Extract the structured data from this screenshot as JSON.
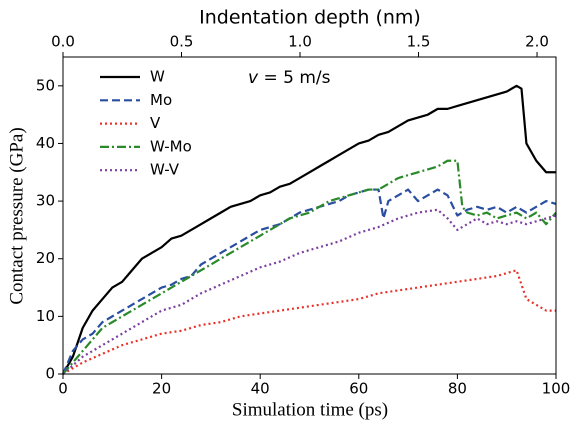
{
  "chart_data": {
    "type": "line",
    "xlabel": "Simulation time (ps)",
    "ylabel": "Contact pressure (GPa)",
    "x2label": "Indentation depth (nm)",
    "annotation": {
      "variable": "v",
      "text": "= 5 m/s"
    },
    "xlim": [
      0,
      100
    ],
    "xticks": [
      0,
      20,
      40,
      60,
      80,
      100
    ],
    "ylim": [
      0,
      55
    ],
    "yticks": [
      0,
      10,
      20,
      30,
      40,
      50
    ],
    "x2lim": [
      0,
      2.08
    ],
    "x2ticks": [
      {
        "value": 0,
        "label": "0.0"
      },
      {
        "value": 0.5,
        "label": "0.5"
      },
      {
        "value": 1,
        "label": "1.0"
      },
      {
        "value": 1.5,
        "label": "1.5"
      },
      {
        "value": 2,
        "label": "2.0"
      }
    ],
    "legend": "upper left",
    "series": [
      {
        "name": "W",
        "color": "#000000",
        "linestyle": "solid",
        "x": [
          0,
          2,
          4,
          6,
          8,
          10,
          12,
          14,
          16,
          18,
          20,
          22,
          24,
          26,
          28,
          30,
          32,
          34,
          36,
          38,
          40,
          42,
          44,
          46,
          48,
          50,
          52,
          54,
          56,
          58,
          60,
          62,
          64,
          66,
          68,
          70,
          72,
          74,
          76,
          78,
          80,
          82,
          84,
          86,
          88,
          90,
          92,
          93,
          94,
          96,
          98,
          100
        ],
        "values": [
          0,
          3,
          8,
          11,
          13,
          15,
          16,
          18,
          20,
          21,
          22,
          23.5,
          24,
          25,
          26,
          27,
          28,
          29,
          29.5,
          30,
          31,
          31.5,
          32.5,
          33,
          34,
          35,
          36,
          37,
          38,
          39,
          40,
          40.5,
          41.5,
          42,
          43,
          44,
          44.5,
          45,
          46,
          46,
          46.5,
          47,
          47.5,
          48,
          48.5,
          49,
          50,
          49.5,
          40,
          37,
          35,
          35
        ]
      },
      {
        "name": "Mo",
        "color": "#2a4ea0",
        "linestyle": "dashed",
        "x": [
          0,
          2,
          4,
          6,
          8,
          10,
          12,
          14,
          16,
          18,
          20,
          22,
          24,
          26,
          28,
          30,
          32,
          34,
          36,
          38,
          40,
          42,
          44,
          46,
          48,
          50,
          52,
          54,
          56,
          58,
          60,
          62,
          64,
          65,
          66,
          68,
          70,
          72,
          74,
          76,
          78,
          80,
          82,
          84,
          86,
          88,
          90,
          92,
          94,
          96,
          98,
          100
        ],
        "values": [
          0,
          4,
          6,
          7,
          9,
          10,
          11,
          12,
          13,
          14,
          15,
          15.5,
          16.5,
          17,
          19,
          20,
          21,
          22,
          23,
          24,
          25,
          25.5,
          26,
          27,
          28,
          28.5,
          29,
          29.5,
          30,
          31,
          31.5,
          32,
          32,
          27,
          30,
          31,
          32,
          30,
          31,
          32,
          31,
          27.5,
          28.5,
          29,
          28.5,
          29,
          28,
          29,
          28,
          29,
          30,
          29.5
        ]
      },
      {
        "name": "V",
        "color": "#e8322a",
        "linestyle": "dotted",
        "x": [
          0,
          4,
          8,
          12,
          16,
          20,
          24,
          28,
          32,
          36,
          40,
          44,
          48,
          52,
          56,
          60,
          64,
          68,
          72,
          76,
          80,
          84,
          88,
          92,
          94,
          96,
          98,
          100
        ],
        "values": [
          0,
          2,
          3.5,
          5,
          6,
          7,
          7.5,
          8.5,
          9,
          10,
          10.5,
          11,
          11.5,
          12,
          12.5,
          13,
          14,
          14.5,
          15,
          15.5,
          16,
          16.5,
          17,
          18,
          13,
          12,
          11,
          11
        ]
      },
      {
        "name": "W-Mo",
        "color": "#2a8a2a",
        "linestyle": "dashdot",
        "x": [
          0,
          2,
          4,
          6,
          8,
          10,
          12,
          14,
          16,
          18,
          20,
          22,
          24,
          26,
          28,
          30,
          32,
          34,
          36,
          38,
          40,
          42,
          44,
          46,
          48,
          50,
          52,
          54,
          56,
          58,
          60,
          62,
          64,
          66,
          68,
          70,
          72,
          74,
          76,
          78,
          80,
          81,
          82,
          84,
          86,
          88,
          90,
          92,
          94,
          96,
          98,
          100
        ],
        "values": [
          0,
          2,
          4,
          6,
          8,
          9,
          10,
          11,
          12,
          13,
          14,
          15,
          16,
          17,
          18,
          19,
          20,
          21,
          22,
          23,
          24,
          25,
          26,
          27,
          27.5,
          28,
          29,
          30,
          30.5,
          31,
          31.5,
          32,
          32,
          33,
          34,
          34.5,
          35,
          35.5,
          36,
          37,
          37,
          29,
          28,
          27.5,
          28,
          27,
          27.5,
          28,
          27,
          28,
          26,
          28
        ]
      },
      {
        "name": "W-V",
        "color": "#7b3fa0",
        "linestyle": "dotted",
        "x": [
          0,
          4,
          8,
          12,
          16,
          20,
          24,
          28,
          32,
          36,
          40,
          44,
          48,
          52,
          56,
          60,
          64,
          68,
          72,
          76,
          78,
          80,
          82,
          84,
          86,
          88,
          90,
          92,
          94,
          96,
          98,
          100
        ],
        "values": [
          0,
          3,
          5,
          7,
          9,
          11,
          12,
          14,
          15.5,
          17,
          18.5,
          19.5,
          21,
          22,
          23,
          24.5,
          25.5,
          27,
          28,
          28.5,
          27,
          25,
          26,
          27,
          26,
          26.5,
          26,
          26.5,
          26,
          26.5,
          27,
          27.5
        ]
      }
    ]
  }
}
